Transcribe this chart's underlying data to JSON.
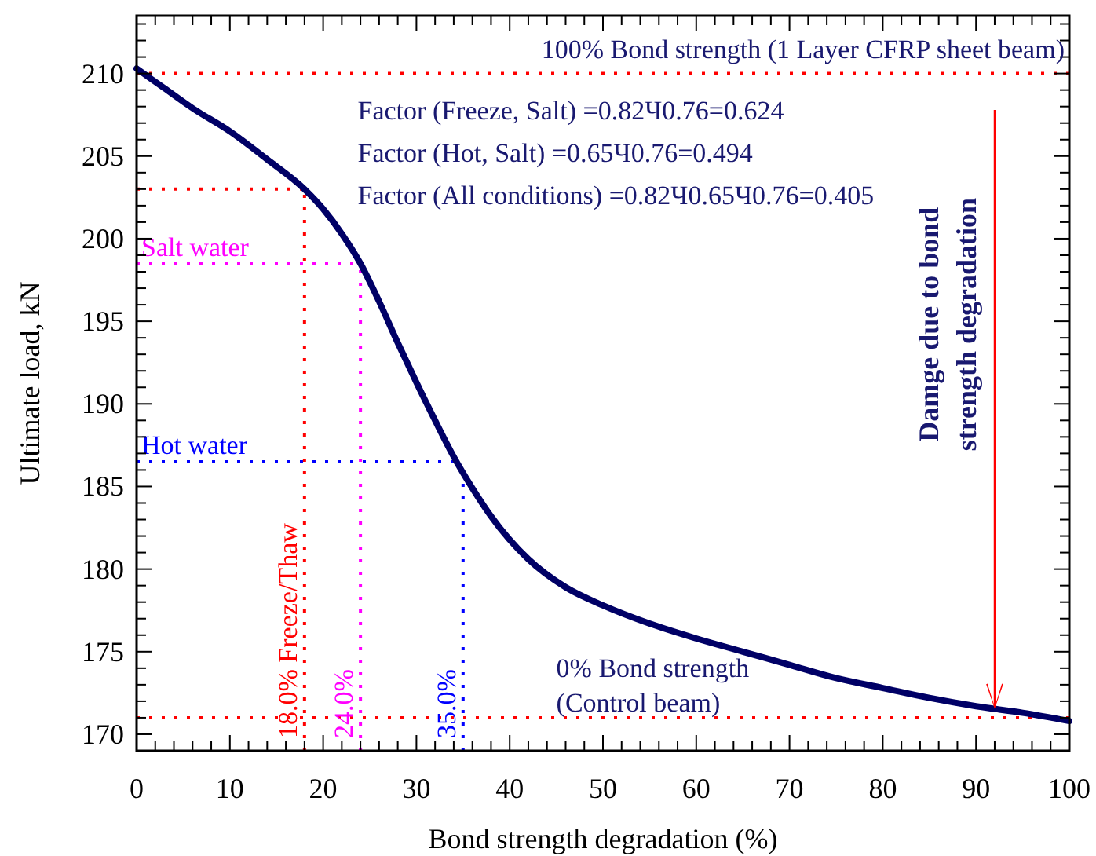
{
  "chart_data": {
    "type": "line",
    "xlabel": "Bond strength degradation (%)",
    "ylabel": "Ultimate load, kN",
    "x": [
      0,
      3,
      6,
      10,
      14,
      18,
      20,
      22,
      24,
      26,
      28,
      30,
      32,
      34,
      36,
      38,
      42,
      46,
      50,
      55,
      60,
      65,
      70,
      75,
      80,
      85,
      90,
      95,
      100
    ],
    "series": [
      {
        "color": "#000066",
        "values": [
          210.3,
          209.1,
          207.9,
          206.5,
          204.8,
          203,
          201.8,
          200.3,
          198.5,
          196.2,
          193.7,
          191.3,
          189,
          186.8,
          184.9,
          183.2,
          180.6,
          178.9,
          177.8,
          176.7,
          175.8,
          175,
          174.2,
          173.4,
          172.8,
          172.2,
          171.7,
          171.3,
          170.8
        ]
      }
    ],
    "xlim": [
      0,
      100
    ],
    "ylim": [
      169,
      213.5
    ],
    "xticks": [
      0,
      {
        "value": 2,
        "label": null
      },
      {
        "value": 4,
        "label": null
      },
      {
        "value": 6,
        "label": null
      },
      {
        "value": 8,
        "label": null
      },
      10,
      {
        "value": 12,
        "label": null
      },
      {
        "value": 14,
        "label": null
      },
      {
        "value": 16,
        "label": null
      },
      {
        "value": 18,
        "label": null
      },
      20,
      {
        "value": 22,
        "label": null
      },
      {
        "value": 24,
        "label": null
      },
      {
        "value": 26,
        "label": null
      },
      {
        "value": 28,
        "label": null
      },
      30,
      {
        "value": 32,
        "label": null
      },
      {
        "value": 34,
        "label": null
      },
      {
        "value": 36,
        "label": null
      },
      {
        "value": 38,
        "label": null
      },
      40,
      {
        "value": 42,
        "label": null
      },
      {
        "value": 44,
        "label": null
      },
      {
        "value": 46,
        "label": null
      },
      {
        "value": 48,
        "label": null
      },
      50,
      {
        "value": 52,
        "label": null
      },
      {
        "value": 54,
        "label": null
      },
      {
        "value": 56,
        "label": null
      },
      {
        "value": 58,
        "label": null
      },
      60,
      {
        "value": 62,
        "label": null
      },
      {
        "value": 64,
        "label": null
      },
      {
        "value": 66,
        "label": null
      },
      {
        "value": 68,
        "label": null
      },
      70,
      {
        "value": 72,
        "label": null
      },
      {
        "value": 74,
        "label": null
      },
      {
        "value": 76,
        "label": null
      },
      {
        "value": 78,
        "label": null
      },
      80,
      {
        "value": 82,
        "label": null
      },
      {
        "value": 84,
        "label": null
      },
      {
        "value": 86,
        "label": null
      },
      {
        "value": 88,
        "label": null
      },
      90,
      {
        "value": 92,
        "label": null
      },
      {
        "value": 94,
        "label": null
      },
      {
        "value": 96,
        "label": null
      },
      {
        "value": 98,
        "label": null
      },
      100
    ],
    "yticks": [
      {
        "value": 169,
        "label": null
      },
      170,
      {
        "value": 171,
        "label": null
      },
      {
        "value": 172,
        "label": null
      },
      {
        "value": 173,
        "label": null
      },
      {
        "value": 174,
        "label": null
      },
      175,
      {
        "value": 176,
        "label": null
      },
      {
        "value": 177,
        "label": null
      },
      {
        "value": 178,
        "label": null
      },
      {
        "value": 179,
        "label": null
      },
      180,
      {
        "value": 181,
        "label": null
      },
      {
        "value": 182,
        "label": null
      },
      {
        "value": 183,
        "label": null
      },
      {
        "value": 184,
        "label": null
      },
      185,
      {
        "value": 186,
        "label": null
      },
      {
        "value": 187,
        "label": null
      },
      {
        "value": 188,
        "label": null
      },
      {
        "value": 189,
        "label": null
      },
      190,
      {
        "value": 191,
        "label": null
      },
      {
        "value": 192,
        "label": null
      },
      {
        "value": 193,
        "label": null
      },
      {
        "value": 194,
        "label": null
      },
      195,
      {
        "value": 196,
        "label": null
      },
      {
        "value": 197,
        "label": null
      },
      {
        "value": 198,
        "label": null
      },
      {
        "value": 199,
        "label": null
      },
      200,
      {
        "value": 201,
        "label": null
      },
      {
        "value": 202,
        "label": null
      },
      {
        "value": 203,
        "label": null
      },
      {
        "value": 204,
        "label": null
      },
      205,
      {
        "value": 206,
        "label": null
      },
      {
        "value": 207,
        "label": null
      },
      {
        "value": 208,
        "label": null
      },
      {
        "value": 209,
        "label": null
      },
      210,
      {
        "value": 211,
        "label": null
      },
      {
        "value": 212,
        "label": null
      },
      {
        "value": 213,
        "label": null
      }
    ],
    "grid": false,
    "marker": "none",
    "line_style": "solid",
    "ref_lines": [
      {
        "axis": "y",
        "value": 210,
        "color": "#ff0000",
        "line_style": "dotted"
      },
      {
        "axis": "y",
        "value": 203,
        "color": "#ff0000",
        "line_style": "dotted"
      },
      {
        "axis": "y",
        "value": 198.5,
        "label": "Salt water",
        "color": "#ff00ff",
        "line_style": "dotted"
      },
      {
        "axis": "y",
        "value": 186.5,
        "label": "Hot water",
        "color": "#0000ff",
        "line_style": "dotted"
      },
      {
        "axis": "y",
        "value": 171,
        "color": "#ff0000",
        "line_style": "dotted"
      },
      {
        "axis": "x",
        "value": 18,
        "label": "18.0%  Freeze/Thaw",
        "color": "#ff0000",
        "line_style": "dotted"
      },
      {
        "axis": "x",
        "value": 24,
        "label": "24.0%",
        "color": "#ff00ff",
        "line_style": "dotted"
      },
      {
        "axis": "x",
        "value": 35,
        "label": "35.0%",
        "color": "#0000ff",
        "line_style": "dotted"
      }
    ],
    "annotations": [
      {
        "text": "100% Bond strength (1 Layer CFRP sheet beam)",
        "x": 100,
        "y": 210
      },
      "Factor (Freeze, Salt) =0.82Ч0.76=0.624",
      "Factor (Hot, Salt) =0.65Ч0.76=0.494",
      "Factor (All conditions) =0.82Ч0.65Ч0.76=0.405",
      "Damge due to bond\nstrength degradation",
      {
        "text": "0% Bond strength\n(Control beam)",
        "x": 45,
        "y": 171
      }
    ]
  }
}
